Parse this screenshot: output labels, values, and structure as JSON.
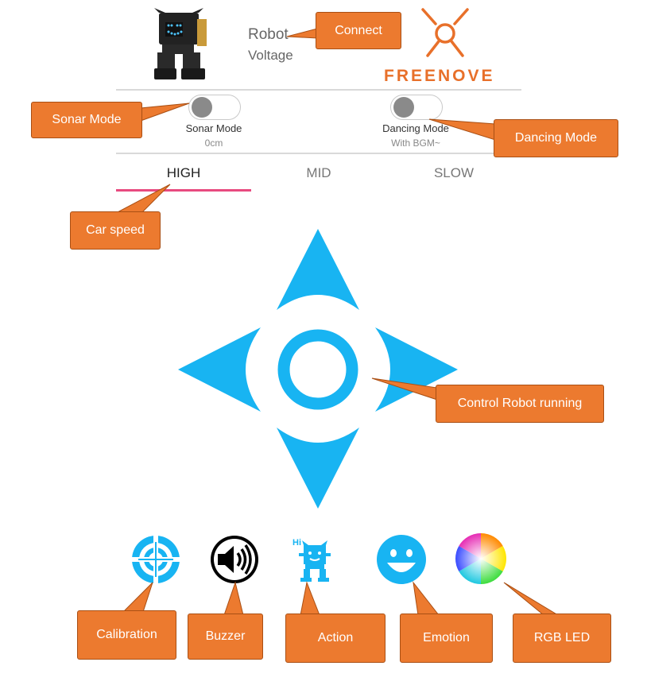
{
  "header": {
    "robot_title": "Robot",
    "robot_subtitle": "Voltage",
    "brand_name": "FREENOVE",
    "robot_image_icon": "robot-image-icon",
    "brand_logo_icon": "freenove-logo-icon"
  },
  "modes": {
    "sonar": {
      "label": "Sonar Mode",
      "value": "0cm",
      "on": false
    },
    "dancing": {
      "label": "Dancing Mode",
      "value": "With BGM~",
      "on": false
    }
  },
  "speed_tabs": [
    {
      "label": "HIGH",
      "selected": true
    },
    {
      "label": "MID",
      "selected": false
    },
    {
      "label": "SLOW",
      "selected": false
    }
  ],
  "direction_pad": {
    "icons": [
      "arrow-up-icon",
      "arrow-left-icon",
      "center-ring-icon",
      "arrow-right-icon",
      "arrow-down-icon"
    ],
    "color": "#18b4f2"
  },
  "bottom_toolbar": {
    "icons": [
      "calibration-icon",
      "buzzer-icon",
      "action-icon",
      "emotion-icon",
      "rgb-led-icon"
    ],
    "action_icon_text": "Hi"
  },
  "callouts": {
    "connect": "Connect",
    "sonar_mode": "Sonar Mode",
    "dancing_mode": "Dancing Mode",
    "car_speed": "Car speed",
    "control": "Control Robot running",
    "calibration": "Calibration",
    "buzzer": "Buzzer",
    "action": "Action",
    "emotion": "Emotion",
    "rgb_led": "RGB LED"
  },
  "colors": {
    "accent_blue": "#18b4f2",
    "callout_orange": "#ec7a2f",
    "tab_underline": "#e84a7f",
    "brand_orange": "#e8702a"
  }
}
